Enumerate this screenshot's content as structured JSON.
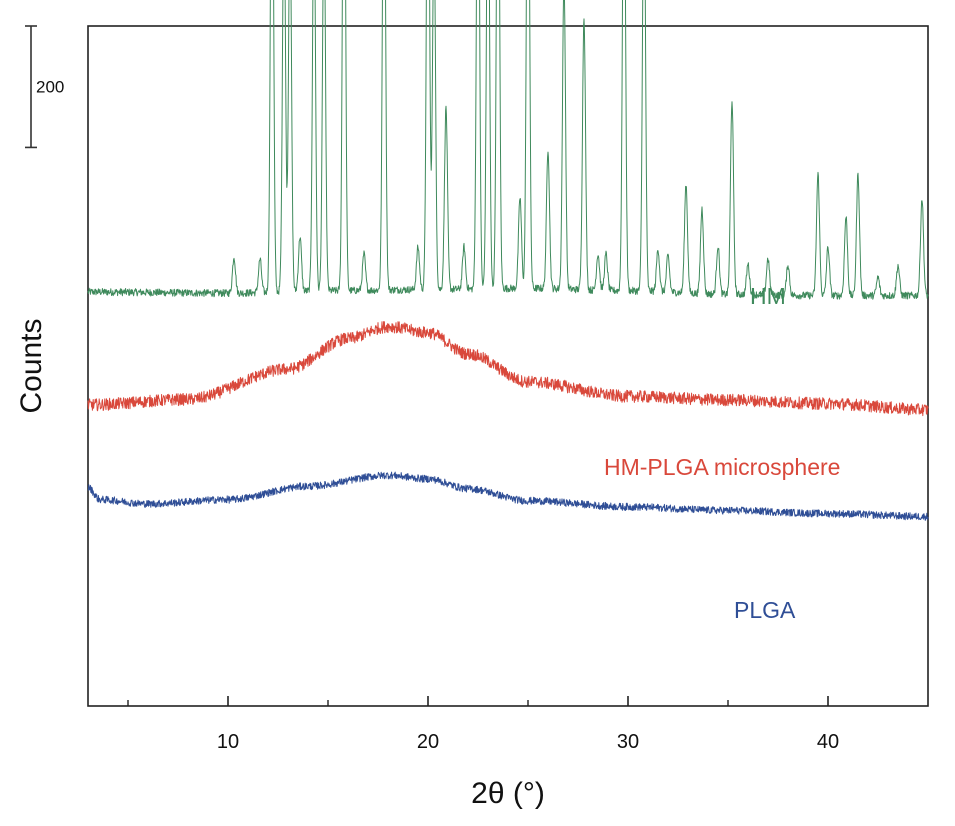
{
  "chart_data": {
    "type": "line",
    "title": "",
    "xlabel": "2θ (°)",
    "ylabel": "Counts",
    "xlim": [
      3,
      45
    ],
    "x_major_ticks": [
      10,
      20,
      30,
      40
    ],
    "x_minor_ticks": [
      5,
      15,
      25,
      35
    ],
    "x_tick_labels": [
      "10",
      "20",
      "30",
      "40"
    ],
    "ylim": [
      0,
      1120
    ],
    "y_ticks_shown": false,
    "grid": false,
    "scale_bar": {
      "label": "200",
      "value": 200,
      "from": 920,
      "to": 1120
    },
    "series": [
      {
        "name": "HM",
        "label": "HM",
        "color": "#3f8a5c",
        "baseline": [
          [
            3,
            682
          ],
          [
            10,
            680
          ],
          [
            15,
            684
          ],
          [
            20,
            686
          ],
          [
            25,
            688
          ],
          [
            30,
            684
          ],
          [
            35,
            678
          ],
          [
            40,
            676
          ],
          [
            45,
            676
          ]
        ],
        "noise": 6,
        "peaks": [
          [
            10.3,
            60
          ],
          [
            11.6,
            55
          ],
          [
            12.2,
            895
          ],
          [
            12.8,
            650
          ],
          [
            13.1,
            620
          ],
          [
            13.6,
            90
          ],
          [
            14.3,
            640
          ],
          [
            14.8,
            620
          ],
          [
            15.8,
            900
          ],
          [
            16.8,
            60
          ],
          [
            17.8,
            835
          ],
          [
            19.5,
            70
          ],
          [
            20.0,
            880
          ],
          [
            20.3,
            600
          ],
          [
            20.9,
            300
          ],
          [
            21.8,
            70
          ],
          [
            22.5,
            850
          ],
          [
            23.0,
            770
          ],
          [
            23.5,
            895
          ],
          [
            24.6,
            150
          ],
          [
            25.0,
            895
          ],
          [
            26.0,
            230
          ],
          [
            26.8,
            510
          ],
          [
            27.8,
            450
          ],
          [
            28.5,
            60
          ],
          [
            28.9,
            60
          ],
          [
            29.8,
            790
          ],
          [
            30.8,
            700
          ],
          [
            31.5,
            70
          ],
          [
            32.0,
            60
          ],
          [
            32.9,
            180
          ],
          [
            33.7,
            140
          ],
          [
            34.5,
            80
          ],
          [
            35.2,
            320
          ],
          [
            36.0,
            50
          ],
          [
            37.0,
            60
          ],
          [
            38.0,
            50
          ],
          [
            39.5,
            200
          ],
          [
            40.0,
            80
          ],
          [
            40.9,
            130
          ],
          [
            41.5,
            200
          ],
          [
            42.5,
            30
          ],
          [
            43.5,
            50
          ],
          [
            44.7,
            160
          ]
        ]
      },
      {
        "name": "HM-PLGA microsphere",
        "label": "HM-PLGA microsphere",
        "color": "#d9483b",
        "baseline": [
          [
            3,
            496
          ],
          [
            8,
            505
          ],
          [
            13,
            555
          ],
          [
            16,
            605
          ],
          [
            18,
            625
          ],
          [
            20,
            615
          ],
          [
            22,
            580
          ],
          [
            25,
            534
          ],
          [
            30,
            510
          ],
          [
            35,
            504
          ],
          [
            40,
            498
          ],
          [
            45,
            488
          ]
        ],
        "noise": 10,
        "peaks": []
      },
      {
        "name": "PLGA",
        "label": "PLGA",
        "color": "#2f4e96",
        "baseline": [
          [
            3,
            360
          ],
          [
            3.6,
            340
          ],
          [
            6,
            333
          ],
          [
            10,
            340
          ],
          [
            14,
            362
          ],
          [
            18,
            380
          ],
          [
            20,
            374
          ],
          [
            22,
            358
          ],
          [
            25,
            338
          ],
          [
            30,
            328
          ],
          [
            35,
            322
          ],
          [
            40,
            317
          ],
          [
            45,
            312
          ]
        ],
        "noise": 6,
        "peaks": []
      }
    ]
  }
}
